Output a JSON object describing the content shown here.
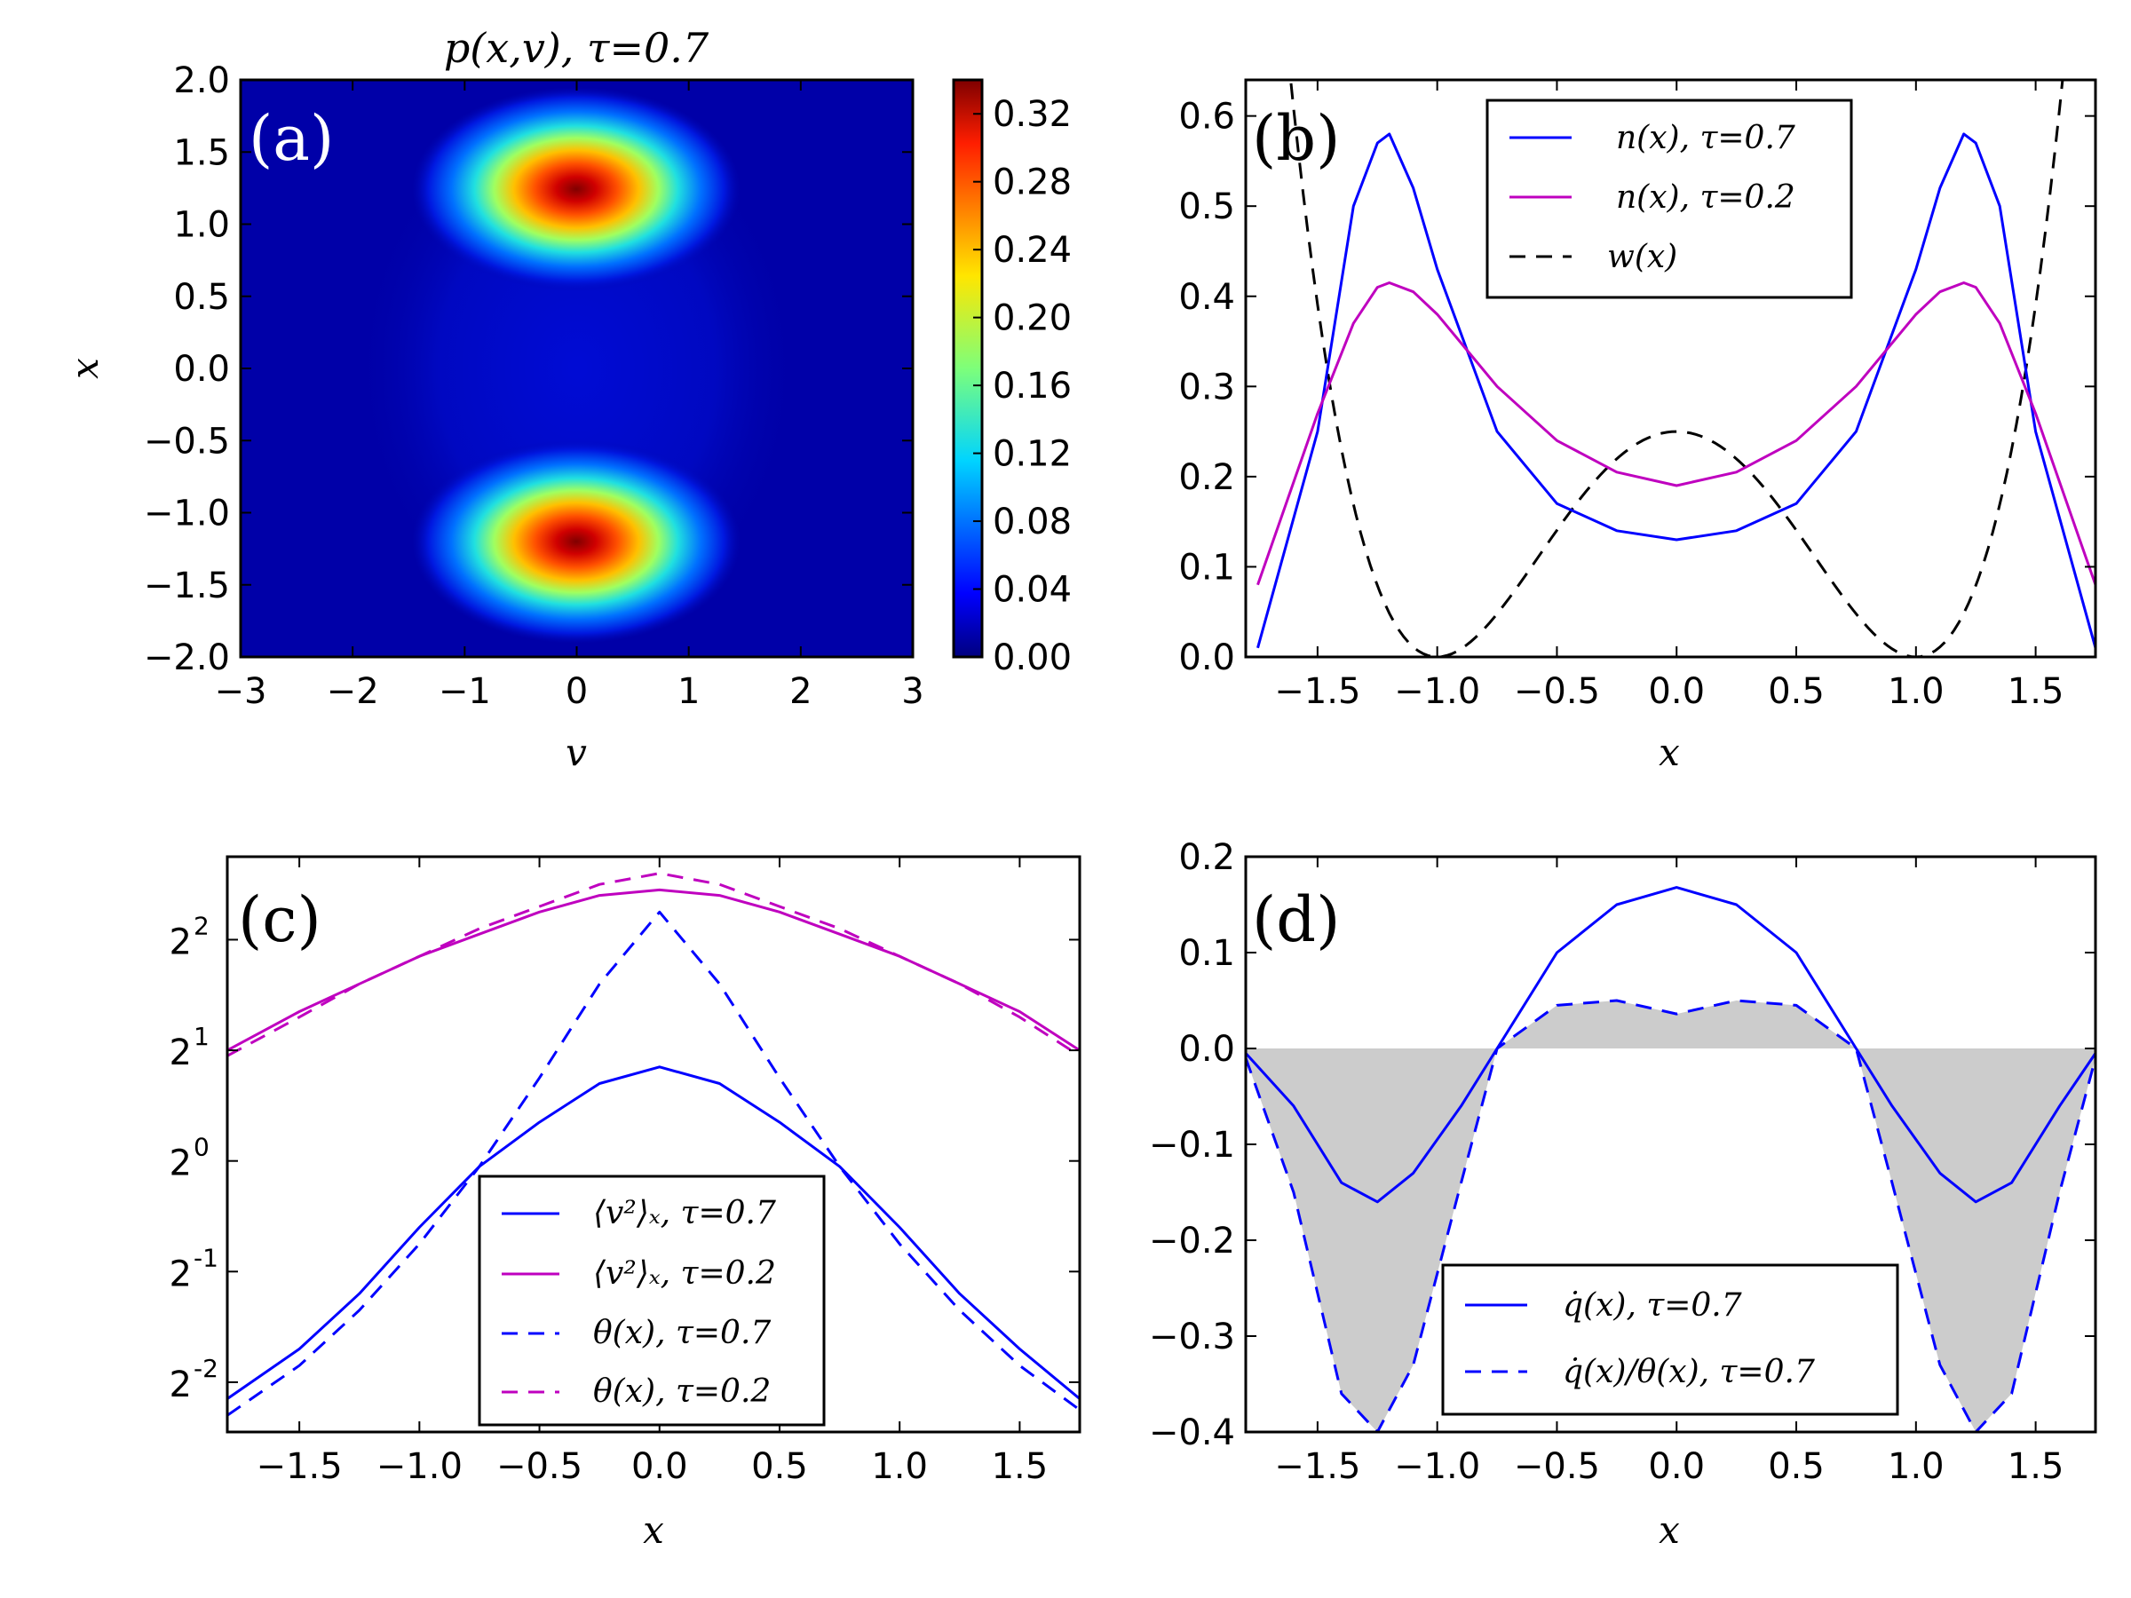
{
  "chart_data": [
    {
      "id": "a",
      "type": "heatmap",
      "panel_label": "(a)",
      "title": "p(x,v), τ=0.7",
      "xlabel": "v",
      "ylabel": "x",
      "xlim": [
        -3,
        3
      ],
      "ylim": [
        -2,
        2
      ],
      "xticks": [
        "−3",
        "−2",
        "−1",
        "0",
        "1",
        "2",
        "3"
      ],
      "xtick_values": [
        -3,
        -2,
        -1,
        0,
        1,
        2,
        3
      ],
      "yticks": [
        "−2.0",
        "−1.5",
        "−1.0",
        "−0.5",
        "0.0",
        "0.5",
        "1.0",
        "1.5",
        "2.0"
      ],
      "ytick_values": [
        -2,
        -1.5,
        -1,
        -0.5,
        0,
        0.5,
        1,
        1.5,
        2
      ],
      "colorbar": {
        "range": [
          0,
          0.34
        ],
        "ticks": [
          "0.00",
          "0.04",
          "0.08",
          "0.12",
          "0.16",
          "0.20",
          "0.24",
          "0.28",
          "0.32"
        ],
        "tick_values": [
          0,
          0.04,
          0.08,
          0.12,
          0.16,
          0.2,
          0.24,
          0.28,
          0.32
        ]
      },
      "peaks": [
        {
          "x": 1.22,
          "v": 0.0,
          "value": 0.34
        },
        {
          "x": -1.22,
          "v": 0.0,
          "value": 0.34
        }
      ]
    },
    {
      "id": "b",
      "type": "line",
      "panel_label": "(b)",
      "xlabel": "x",
      "xlim": [
        -1.8,
        1.75
      ],
      "ylim": [
        0,
        0.64
      ],
      "xticks": [
        "−1.5",
        "−1.0",
        "−0.5",
        "0.0",
        "0.5",
        "1.0",
        "1.5"
      ],
      "xtick_values": [
        -1.5,
        -1,
        -0.5,
        0,
        0.5,
        1,
        1.5
      ],
      "yticks": [
        "0.0",
        "0.1",
        "0.2",
        "0.3",
        "0.4",
        "0.5",
        "0.6"
      ],
      "ytick_values": [
        0,
        0.1,
        0.2,
        0.3,
        0.4,
        0.5,
        0.6
      ],
      "x": [
        -1.75,
        -1.5,
        -1.35,
        -1.25,
        -1.2,
        -1.1,
        -1.0,
        -0.75,
        -0.5,
        -0.25,
        0,
        0.25,
        0.5,
        0.75,
        1.0,
        1.1,
        1.2,
        1.25,
        1.35,
        1.5,
        1.75
      ],
      "series": [
        {
          "name": "n(x), τ=0.7",
          "color": "#0000ff",
          "dash": false,
          "values": [
            0.01,
            0.25,
            0.5,
            0.57,
            0.58,
            0.52,
            0.43,
            0.25,
            0.17,
            0.14,
            0.13,
            0.14,
            0.17,
            0.25,
            0.43,
            0.52,
            0.58,
            0.57,
            0.5,
            0.25,
            0.01
          ]
        },
        {
          "name": "n(x), τ=0.2",
          "color": "#bf00bf",
          "dash": false,
          "values": [
            0.08,
            0.27,
            0.37,
            0.41,
            0.415,
            0.405,
            0.38,
            0.3,
            0.24,
            0.205,
            0.19,
            0.205,
            0.24,
            0.3,
            0.38,
            0.405,
            0.415,
            0.41,
            0.37,
            0.27,
            0.08
          ]
        },
        {
          "name": "w(x)",
          "color": "#000000",
          "dash": true,
          "formula": "(x^2-1)^2/4"
        }
      ]
    },
    {
      "id": "c",
      "type": "line",
      "panel_label": "(c)",
      "xlabel": "x",
      "yscale": "log2",
      "xlim": [
        -1.8,
        1.75
      ],
      "ylim_log2": [
        -2.45,
        2.75
      ],
      "xticks": [
        "−1.5",
        "−1.0",
        "−0.5",
        "0.0",
        "0.5",
        "1.0",
        "1.5"
      ],
      "xtick_values": [
        -1.5,
        -1,
        -0.5,
        0,
        0.5,
        1,
        1.5
      ],
      "ytick_bases": [
        "2",
        "2",
        "2",
        "2",
        "2"
      ],
      "ytick_exponents": [
        "-2",
        "-1",
        "0",
        "1",
        "2"
      ],
      "ytick_values_log2": [
        -2,
        -1,
        0,
        1,
        2
      ],
      "x": [
        -1.8,
        -1.5,
        -1.25,
        -1.0,
        -0.75,
        -0.5,
        -0.25,
        0,
        0.25,
        0.5,
        0.75,
        1.0,
        1.25,
        1.5,
        1.75
      ],
      "series": [
        {
          "name": "⟨v²⟩ₓ, τ=0.7",
          "color": "#0000ff",
          "dash": false,
          "values_log2": [
            -2.15,
            -1.7,
            -1.2,
            -0.6,
            -0.05,
            0.35,
            0.7,
            0.85,
            0.7,
            0.35,
            -0.05,
            -0.6,
            -1.2,
            -1.7,
            -2.15
          ]
        },
        {
          "name": "⟨v²⟩ₓ, τ=0.2",
          "color": "#bf00bf",
          "dash": false,
          "values_log2": [
            1.0,
            1.35,
            1.6,
            1.85,
            2.05,
            2.25,
            2.4,
            2.45,
            2.4,
            2.25,
            2.05,
            1.85,
            1.6,
            1.35,
            1.0
          ]
        },
        {
          "name": "θ(x), τ=0.7",
          "color": "#0000ff",
          "dash": true,
          "values_log2": [
            -2.3,
            -1.85,
            -1.35,
            -0.75,
            -0.05,
            0.75,
            1.6,
            2.25,
            1.6,
            0.75,
            -0.05,
            -0.75,
            -1.35,
            -1.85,
            -2.25
          ]
        },
        {
          "name": "θ(x), τ=0.2",
          "color": "#bf00bf",
          "dash": true,
          "values_log2": [
            0.95,
            1.3,
            1.6,
            1.85,
            2.1,
            2.3,
            2.5,
            2.6,
            2.5,
            2.3,
            2.1,
            1.85,
            1.6,
            1.3,
            0.95
          ]
        }
      ]
    },
    {
      "id": "d",
      "type": "line",
      "panel_label": "(d)",
      "xlabel": "x",
      "xlim": [
        -1.8,
        1.75
      ],
      "ylim": [
        -0.4,
        0.2
      ],
      "xticks": [
        "−1.5",
        "−1.0",
        "−0.5",
        "0.0",
        "0.5",
        "1.0",
        "1.5"
      ],
      "xtick_values": [
        -1.5,
        -1,
        -0.5,
        0,
        0.5,
        1,
        1.5
      ],
      "yticks": [
        "−0.4",
        "−0.3",
        "−0.2",
        "−0.1",
        "0.0",
        "0.1",
        "0.2"
      ],
      "ytick_values": [
        -0.4,
        -0.3,
        -0.2,
        -0.1,
        0,
        0.1,
        0.2
      ],
      "x": [
        -1.8,
        -1.6,
        -1.4,
        -1.25,
        -1.1,
        -0.9,
        -0.75,
        -0.5,
        -0.25,
        0,
        0.25,
        0.5,
        0.75,
        0.9,
        1.1,
        1.25,
        1.4,
        1.6,
        1.75
      ],
      "series": [
        {
          "name": "q̇(x), τ=0.7",
          "color": "#0000ff",
          "dash": false,
          "values": [
            -0.005,
            -0.06,
            -0.14,
            -0.16,
            -0.13,
            -0.06,
            0.0,
            0.1,
            0.15,
            0.168,
            0.15,
            0.1,
            0.0,
            -0.06,
            -0.13,
            -0.16,
            -0.14,
            -0.06,
            -0.005
          ]
        },
        {
          "name": "q̇(x)/θ(x), τ=0.7",
          "color": "#0000ff",
          "dash": true,
          "fill": "#cccccc",
          "values": [
            -0.01,
            -0.15,
            -0.36,
            -0.4,
            -0.33,
            -0.14,
            0.0,
            0.045,
            0.05,
            0.036,
            0.05,
            0.045,
            0.0,
            -0.14,
            -0.33,
            -0.4,
            -0.36,
            -0.15,
            -0.01
          ]
        }
      ]
    }
  ]
}
